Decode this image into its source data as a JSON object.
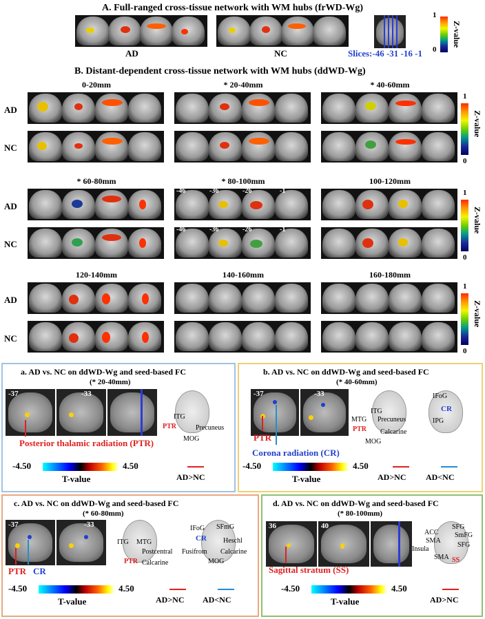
{
  "sectionA": {
    "title": "A. Full-ranged cross-tissue network with WM hubs (frWD-Wg)",
    "groups": [
      "AD",
      "NC"
    ],
    "slices_label": "Slices:-46 -31 -16 -1",
    "colorbar": {
      "max": "1",
      "min": "0",
      "label": "Z-value"
    }
  },
  "sectionB": {
    "title": "B. Distant-dependent cross-tissue network with WM hubs (ddWD-Wg)",
    "rows": [
      "AD",
      "NC"
    ],
    "ranges": [
      "0-20mm",
      "* 20-40mm",
      "* 40-60mm",
      "* 60-80mm",
      "* 80-100mm",
      "100-120mm",
      "120-140mm",
      "140-160mm",
      "160-180mm"
    ],
    "slice_numbers": [
      "-46",
      "-36",
      "-26",
      "-1"
    ],
    "colorbar": {
      "max": "1",
      "min": "0",
      "label": "Z-value"
    }
  },
  "panels": {
    "a": {
      "title": "a. AD vs. NC on ddWD-Wg and seed-based FC",
      "sub": "(* 20-40mm)",
      "slices": [
        "-37",
        "-33"
      ],
      "regions": [
        "ITG",
        "PTR",
        "Precuneus",
        "MOG"
      ],
      "seed_label": "Posterior thalamic radiation (PTR)",
      "tmin": "-4.50",
      "tmax": "4.50",
      "tlabel": "T-value",
      "legend": [
        "AD>NC"
      ],
      "border": "#9ec3e0"
    },
    "b": {
      "title": "b. AD vs. NC on ddWD-Wg and seed-based FC",
      "sub": "(* 40-60mm)",
      "slices": [
        "-37",
        "-33"
      ],
      "regions1": [
        "ITG",
        "MTG",
        "Precuneus",
        "PTR",
        "Calcarine",
        "MOG"
      ],
      "regions2": [
        "IFoG",
        "CR",
        "IPG"
      ],
      "seed1": "PTR",
      "seed2": "Corona radiation (CR)",
      "tmin": "-4.50",
      "tmax": "4.50",
      "tlabel": "T-value",
      "legend": [
        "AD>NC",
        "AD<NC"
      ],
      "border": "#f0d070"
    },
    "c": {
      "title": "c. AD vs. NC on ddWD-Wg and seed-based FC",
      "sub": "(* 60-80mm)",
      "slices": [
        "-37",
        "-33"
      ],
      "regions1": [
        "ITG",
        "MTG",
        "Postcentral",
        "PTR",
        "Calcarine"
      ],
      "regions2": [
        "IFoG",
        "SFmG",
        "CR",
        "Heschl",
        "Fusifrom",
        "Calcarine",
        "MOG"
      ],
      "seed1": "PTR",
      "seed2": "CR",
      "tmin": "-4.50",
      "tmax": "4.50",
      "tlabel": "T-value",
      "legend": [
        "AD>NC",
        "AD<NC"
      ],
      "border": "#e8a880"
    },
    "d": {
      "title": "d. AD vs. NC on ddWD-Wg and seed-based FC",
      "sub": "(* 80-100mm)",
      "slices": [
        "36",
        "40"
      ],
      "regions": [
        "ACC",
        "SFG",
        "SMA",
        "SmFG",
        "Insula",
        "SFG",
        "SMA",
        "SS"
      ],
      "seed_label": "Sagittal stratum (SS)",
      "tmin": "-4.50",
      "tmax": "4.50",
      "tlabel": "T-value",
      "legend": [
        "AD>NC"
      ],
      "border": "#8cc070"
    }
  },
  "colors": {
    "accent_red": "#e02020",
    "accent_blue": "#1f3fd0",
    "slice_blue": "#2b3bd8"
  }
}
